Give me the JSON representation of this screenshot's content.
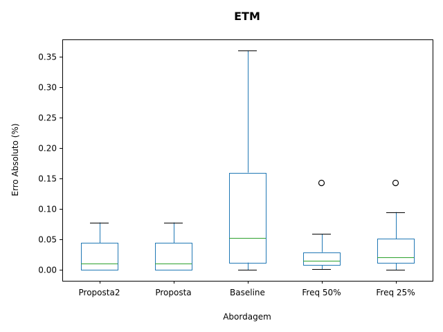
{
  "chart_data": {
    "type": "box",
    "title": "ETM",
    "xlabel": "Abordagem",
    "ylabel": "Erro Absoluto (%)",
    "categories": [
      "Proposta2",
      "Proposta",
      "Baseline",
      "Freq 50%",
      "Freq 25%"
    ],
    "boxes": [
      {
        "whisker_low": 0.0,
        "q1": 0.0,
        "median": 0.011,
        "q3": 0.044,
        "whisker_high": 0.078,
        "outliers": []
      },
      {
        "whisker_low": 0.0,
        "q1": 0.0,
        "median": 0.011,
        "q3": 0.044,
        "whisker_high": 0.078,
        "outliers": []
      },
      {
        "whisker_low": 0.0,
        "q1": 0.012,
        "median": 0.053,
        "q3": 0.16,
        "whisker_high": 0.361,
        "outliers": []
      },
      {
        "whisker_low": 0.001,
        "q1": 0.008,
        "median": 0.015,
        "q3": 0.029,
        "whisker_high": 0.059,
        "outliers": [
          0.143
        ]
      },
      {
        "whisker_low": 0.0,
        "q1": 0.011,
        "median": 0.021,
        "q3": 0.051,
        "whisker_high": 0.095,
        "outliers": [
          0.143
        ]
      }
    ],
    "yticks": [
      0.0,
      0.05,
      0.1,
      0.15,
      0.2,
      0.25,
      0.3,
      0.35
    ],
    "ytick_labels": [
      "0.00",
      "0.05",
      "0.10",
      "0.15",
      "0.20",
      "0.25",
      "0.30",
      "0.35"
    ],
    "ylim": [
      -0.018,
      0.379
    ],
    "grid": false,
    "colors": {
      "box": "#1f77b4",
      "median": "#2ca02c",
      "whisker_cap": "#000000",
      "axes": "#000000"
    }
  }
}
